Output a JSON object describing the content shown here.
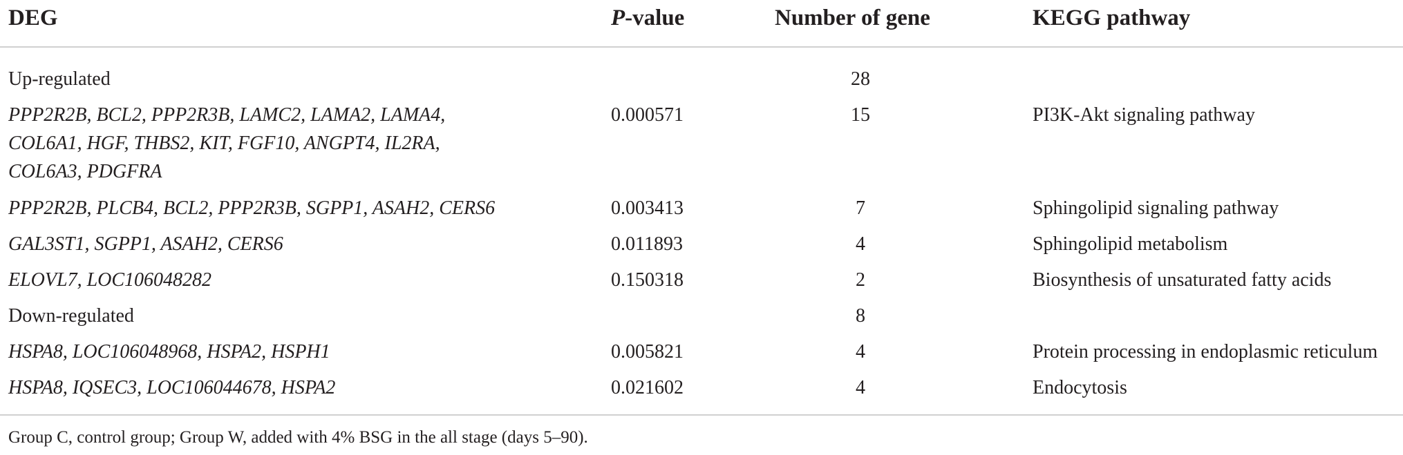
{
  "header": {
    "deg": "DEG",
    "p_italic": "P",
    "p_rest": "-value",
    "number": "Number of gene",
    "kegg": "KEGG pathway"
  },
  "rows": [
    {
      "deg": "Up-regulated",
      "deg_italic": false,
      "p": "",
      "n": "28",
      "kegg": ""
    },
    {
      "deg": "PPP2R2B, BCL2, PPP2R3B, LAMC2, LAMA2, LAMA4,\nCOL6A1, HGF, THBS2, KIT, FGF10, ANGPT4, IL2RA,\nCOL6A3, PDGFRA",
      "deg_italic": true,
      "p": "0.000571",
      "n": "15",
      "kegg": "PI3K-Akt signaling pathway"
    },
    {
      "deg": "PPP2R2B, PLCB4, BCL2, PPP2R3B, SGPP1, ASAH2, CERS6",
      "deg_italic": true,
      "p": "0.003413",
      "n": "7",
      "kegg": "Sphingolipid signaling pathway"
    },
    {
      "deg": "GAL3ST1, SGPP1, ASAH2, CERS6",
      "deg_italic": true,
      "p": "0.011893",
      "n": "4",
      "kegg": "Sphingolipid metabolism"
    },
    {
      "deg": "ELOVL7, LOC106048282",
      "deg_italic": true,
      "p": "0.150318",
      "n": "2",
      "kegg": "Biosynthesis of unsaturated fatty acids"
    },
    {
      "deg": "Down-regulated",
      "deg_italic": false,
      "p": "",
      "n": "8",
      "kegg": ""
    },
    {
      "deg": "HSPA8, LOC106048968, HSPA2, HSPH1",
      "deg_italic": true,
      "p": "0.005821",
      "n": "4",
      "kegg": "Protein processing in endoplasmic reticulum"
    },
    {
      "deg": "HSPA8, IQSEC3, LOC106044678, HSPA2",
      "deg_italic": true,
      "p": "0.021602",
      "n": "4",
      "kegg": "Endocytosis"
    }
  ],
  "footnote": "Group C, control group; Group W, added with 4% BSG in the all stage (days 5–90)."
}
